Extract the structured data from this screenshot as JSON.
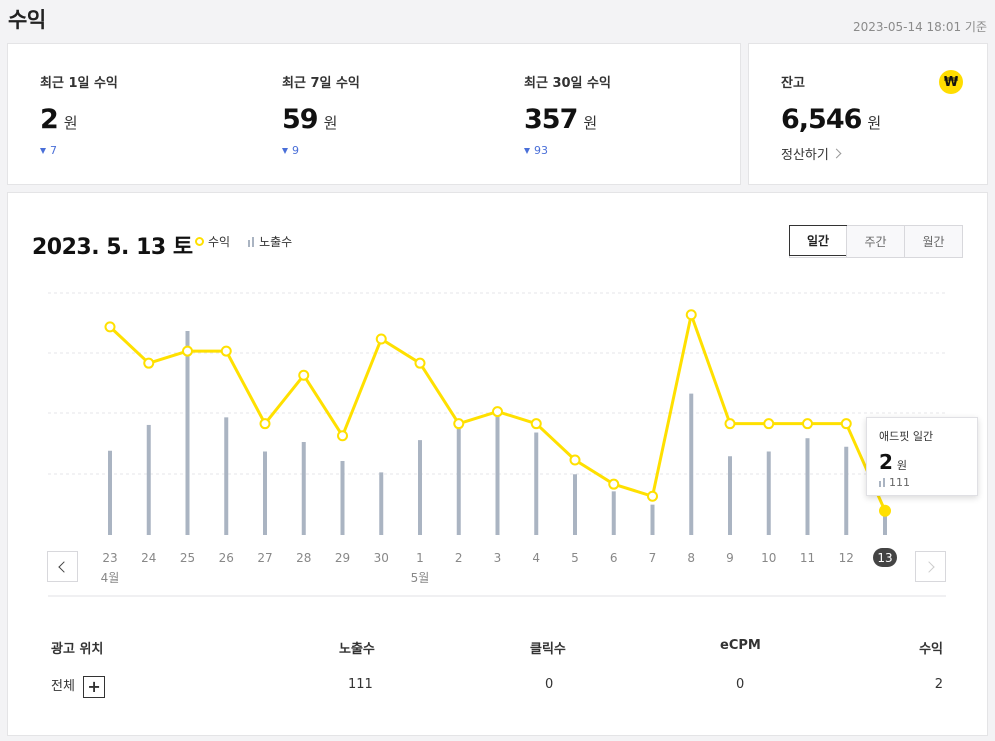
{
  "page": {
    "title": "수익",
    "timestamp": "2023-05-14 18:01 기준"
  },
  "summary": [
    {
      "label": "최근 1일 수익",
      "value": "2",
      "unit": "원",
      "delta": "7"
    },
    {
      "label": "최근 7일 수익",
      "value": "59",
      "unit": "원",
      "delta": "9"
    },
    {
      "label": "최근 30일 수익",
      "value": "357",
      "unit": "원",
      "delta": "93"
    }
  ],
  "balance": {
    "label": "잔고",
    "value": "6,546",
    "unit": "원",
    "settle_label": "정산하기",
    "icon": "won-icon",
    "icon_glyph": "₩"
  },
  "chart_header": {
    "date": "2023. 5. 13 토",
    "legend_revenue": "수익",
    "legend_impressions": "노출수"
  },
  "period_tabs": [
    {
      "label": "일간",
      "active": true
    },
    {
      "label": "주간",
      "active": false
    },
    {
      "label": "월간",
      "active": false
    }
  ],
  "tooltip": {
    "title": "애드핏 일간",
    "value": "2",
    "unit": "원",
    "impressions": "111"
  },
  "chart_data": {
    "type": "line",
    "categories": [
      "23",
      "24",
      "25",
      "26",
      "27",
      "28",
      "29",
      "30",
      "1",
      "2",
      "3",
      "4",
      "5",
      "6",
      "7",
      "8",
      "9",
      "10",
      "11",
      "12",
      "13"
    ],
    "month_labels": [
      {
        "index": 0,
        "label": "4월"
      },
      {
        "index": 8,
        "label": "5월"
      }
    ],
    "selected_index": 20,
    "series": [
      {
        "name": "수익",
        "kind": "line",
        "color": "#ffe000",
        "values": [
          17.2,
          14.2,
          15.2,
          15.2,
          9.2,
          13.2,
          8.2,
          16.2,
          14.2,
          9.2,
          10.2,
          9.2,
          6.2,
          4.2,
          3.2,
          18.2,
          9.2,
          9.2,
          9.2,
          9.2,
          2
        ]
      },
      {
        "name": "노출수",
        "kind": "bar",
        "color": "#aab4c2",
        "values": [
          444,
          580,
          1075,
          620,
          440,
          490,
          390,
          330,
          500,
          560,
          660,
          540,
          320,
          230,
          160,
          745,
          415,
          440,
          510,
          465,
          111
        ]
      }
    ]
  },
  "table": {
    "headers": [
      "광고 위치",
      "노출수",
      "클릭수",
      "eCPM",
      "수익"
    ],
    "row": {
      "name": "전체",
      "impressions": "111",
      "clicks": "0",
      "ecpm": "0",
      "revenue": "2"
    }
  }
}
